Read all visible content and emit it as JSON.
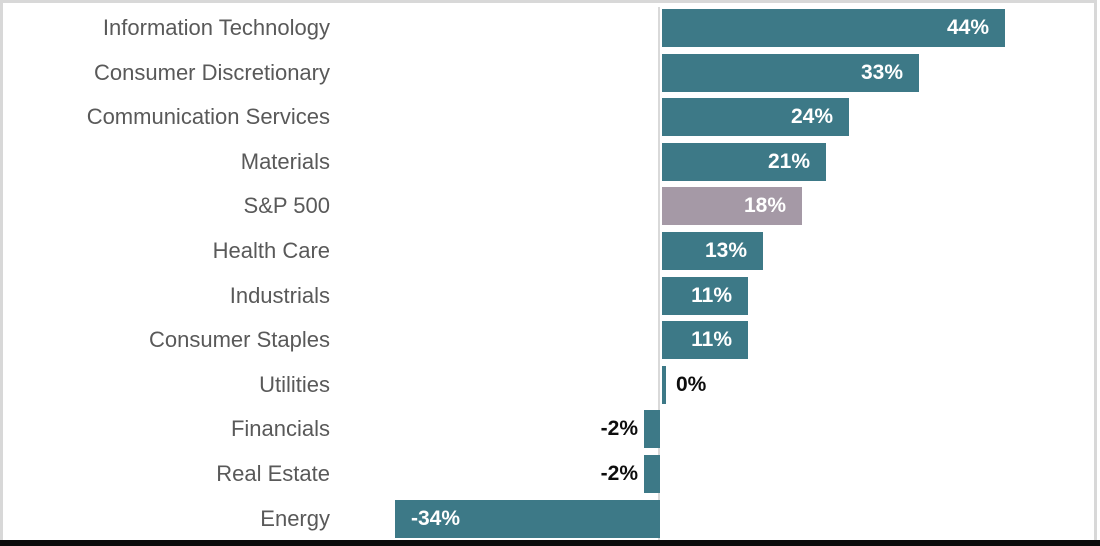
{
  "chart_data": {
    "type": "bar",
    "orientation": "horizontal",
    "title": "",
    "xlabel": "",
    "ylabel": "",
    "axis_range": [
      -40,
      50
    ],
    "grid": false,
    "legend_position": "none",
    "bar_color": "#3d7987",
    "highlight_bar_color": "#a599a6",
    "highlight_index": 4,
    "categories": [
      "Information Technology",
      "Consumer Discretionary",
      "Communication Services",
      "Materials",
      "S&P 500",
      "Health Care",
      "Industrials",
      "Consumer Staples",
      "Utilities",
      "Financials",
      "Real Estate",
      "Energy"
    ],
    "values": [
      44,
      33,
      24,
      21,
      18,
      13,
      11,
      11,
      0,
      -2,
      -2,
      -34
    ],
    "value_labels": [
      "44%",
      "33%",
      "24%",
      "21%",
      "18%",
      "13%",
      "11%",
      "11%",
      "0%",
      "-2%",
      "-2%",
      "-34%"
    ],
    "label_positions": [
      "inside",
      "inside",
      "inside",
      "inside",
      "inside",
      "inside",
      "inside",
      "inside",
      "outside",
      "outside",
      "outside",
      "inside"
    ]
  },
  "colors": {
    "category_text": "#595959",
    "value_text_inside": "#ffffff",
    "value_text_outside": "#0d0d0d",
    "axis_line": "#d9d9d9",
    "frame_border": "#d8d8d8",
    "bottom_strip": "#0b0b0b",
    "background": "#ffffff"
  }
}
